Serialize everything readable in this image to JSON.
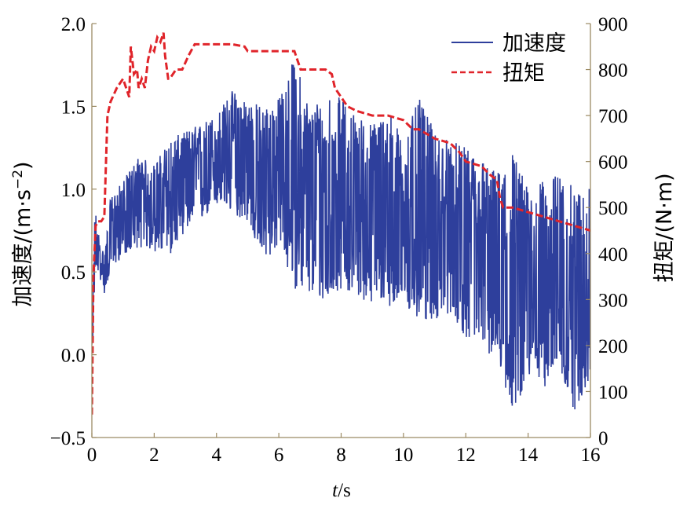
{
  "chart_data": {
    "type": "line",
    "x_axis": {
      "label_italic": "t",
      "label_unit": "/s",
      "range": [
        0,
        16
      ],
      "ticks": [
        "0",
        "2",
        "4",
        "6",
        "8",
        "10",
        "12",
        "14",
        "16"
      ]
    },
    "y_left": {
      "label": "加速度/(m·s",
      "label_sup": "−2",
      "label_close": ")",
      "range": [
        -0.5,
        2.0
      ],
      "ticks": [
        "−0.5",
        "0.0",
        "0.5",
        "1.0",
        "1.5",
        "2.0"
      ]
    },
    "y_right": {
      "label": "扭矩/(N·m)",
      "range": [
        0,
        900
      ],
      "ticks": [
        "0",
        "100",
        "200",
        "300",
        "400",
        "500",
        "600",
        "700",
        "800",
        "900"
      ]
    },
    "legend": {
      "position": "top-right",
      "entries": [
        "加速度",
        "扭矩"
      ]
    },
    "grid": false,
    "colors": {
      "acceleration": "#2e3f9c",
      "torque": "#e0242a",
      "axis": "#9b8a63"
    },
    "series": [
      {
        "name": "加速度",
        "axis": "left",
        "style": "solid",
        "note_band_envelope": true,
        "x": [
          0.0,
          0.1,
          0.2,
          0.4,
          0.6,
          1.0,
          1.5,
          2.0,
          2.5,
          3.0,
          3.5,
          4.0,
          4.5,
          5.0,
          5.5,
          6.0,
          6.5,
          7.0,
          7.5,
          8.0,
          8.5,
          9.0,
          9.5,
          10.0,
          10.5,
          11.0,
          11.5,
          12.0,
          12.5,
          13.0,
          13.5,
          14.0,
          14.5,
          15.0,
          15.5,
          16.0
        ],
        "upper": [
          0.1,
          0.9,
          0.75,
          0.6,
          0.95,
          1.05,
          1.2,
          1.15,
          1.3,
          1.35,
          1.4,
          1.45,
          1.6,
          1.55,
          1.5,
          1.55,
          1.8,
          1.5,
          1.6,
          1.55,
          1.45,
          1.4,
          1.5,
          1.3,
          1.55,
          1.35,
          1.3,
          1.25,
          1.2,
          1.1,
          1.25,
          1.0,
          1.05,
          1.1,
          1.0,
          1.05
        ],
        "lower": [
          -0.05,
          0.45,
          0.5,
          0.37,
          0.5,
          0.6,
          0.65,
          0.62,
          0.6,
          0.75,
          0.8,
          0.9,
          0.85,
          0.8,
          0.55,
          0.65,
          0.4,
          0.35,
          0.3,
          0.4,
          0.35,
          0.3,
          0.3,
          0.25,
          0.2,
          0.2,
          0.25,
          0.1,
          0.05,
          -0.05,
          -0.35,
          -0.15,
          -0.2,
          -0.1,
          -0.35,
          -0.15
        ]
      },
      {
        "name": "扭矩",
        "axis": "right",
        "style": "dashed",
        "x": [
          0.0,
          0.05,
          0.12,
          0.2,
          0.3,
          0.4,
          0.5,
          0.6,
          0.8,
          1.0,
          1.1,
          1.2,
          1.25,
          1.35,
          1.45,
          1.5,
          1.6,
          1.7,
          1.8,
          1.9,
          2.0,
          2.1,
          2.2,
          2.3,
          2.35,
          2.45,
          2.5,
          2.7,
          2.9,
          3.1,
          3.3,
          3.6,
          4.0,
          4.5,
          4.9,
          5.0,
          5.5,
          6.0,
          6.5,
          6.6,
          6.7,
          7.0,
          7.5,
          7.7,
          7.8,
          8.0,
          8.2,
          8.5,
          9.0,
          9.5,
          10.0,
          10.3,
          10.5,
          11.0,
          11.5,
          11.8,
          12.0,
          12.5,
          12.8,
          13.0,
          13.1,
          13.2,
          13.5,
          14.0,
          14.5,
          15.0,
          15.5,
          16.0
        ],
        "values": [
          50,
          350,
          460,
          470,
          470,
          480,
          700,
          730,
          760,
          780,
          760,
          740,
          850,
          790,
          800,
          760,
          780,
          760,
          820,
          850,
          840,
          870,
          860,
          880,
          830,
          780,
          780,
          800,
          800,
          830,
          855,
          855,
          855,
          855,
          850,
          840,
          840,
          840,
          840,
          820,
          800,
          800,
          800,
          790,
          760,
          740,
          720,
          710,
          700,
          700,
          690,
          670,
          670,
          650,
          640,
          620,
          600,
          590,
          570,
          560,
          520,
          500,
          500,
          490,
          480,
          470,
          460,
          450
        ]
      }
    ]
  }
}
